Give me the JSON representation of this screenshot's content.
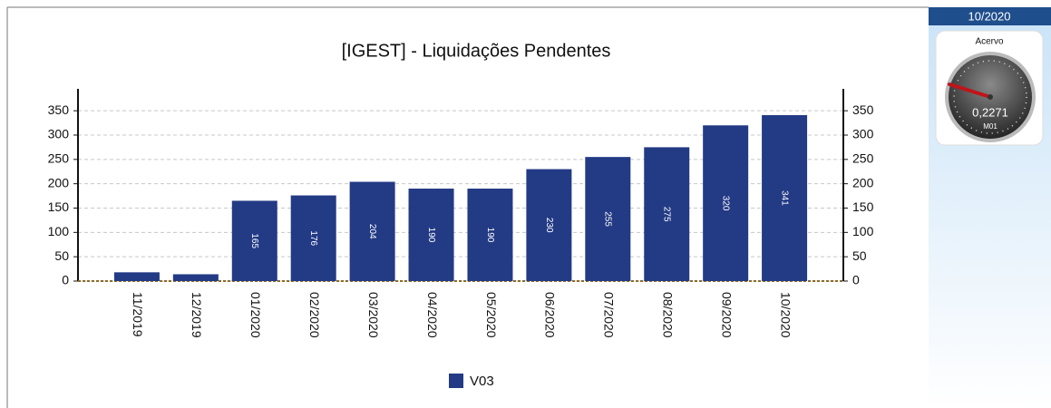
{
  "chart_data": {
    "type": "bar",
    "title": "[IGEST]  - Liquidações Pendentes",
    "categories": [
      "11/2019",
      "12/2019",
      "01/2020",
      "02/2020",
      "03/2020",
      "04/2020",
      "05/2020",
      "06/2020",
      "07/2020",
      "08/2020",
      "09/2020",
      "10/2020"
    ],
    "series": [
      {
        "name": "V03",
        "color": "#233a85",
        "values": [
          18,
          14,
          165,
          176,
          204,
          190,
          190,
          230,
          255,
          275,
          320,
          341
        ]
      }
    ],
    "ylim": [
      0,
      395
    ],
    "yticks": [
      0,
      50,
      100,
      150,
      200,
      250,
      300,
      350
    ],
    "grid": true
  },
  "side_panel": {
    "period": "10/2020",
    "gauge": {
      "title": "Acervo",
      "value": "0,2271",
      "unit": "M01"
    }
  }
}
